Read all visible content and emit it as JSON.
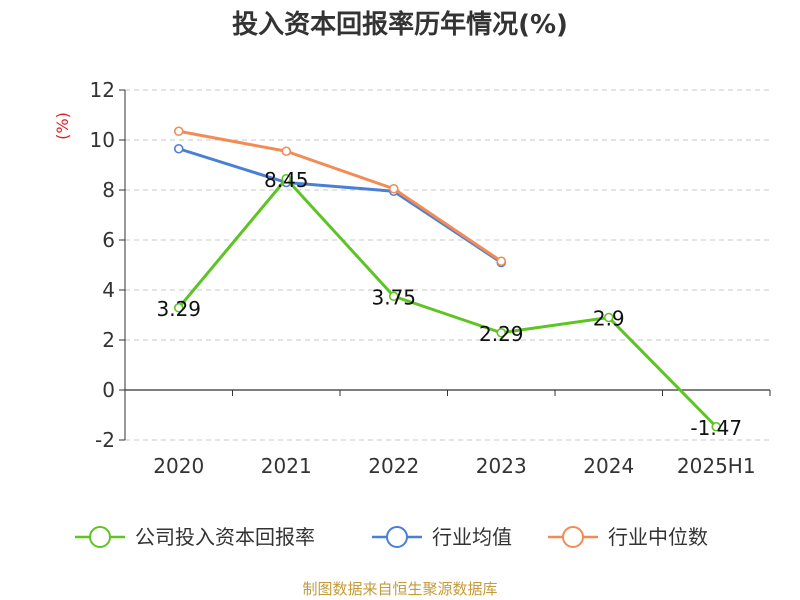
{
  "chart_data": {
    "type": "line",
    "title": "投入资本回报率历年情况(%)",
    "ylabel": "(%)",
    "xlabel": "",
    "categories": [
      "2020",
      "2021",
      "2022",
      "2023",
      "2024",
      "2025H1"
    ],
    "ylim": [
      -2,
      12
    ],
    "yticks": [
      -2,
      0,
      2,
      4,
      6,
      8,
      10,
      12
    ],
    "grid": true,
    "legend_position": "bottom",
    "series": [
      {
        "name": "公司投入资本回报率",
        "color": "#5ec423",
        "values": [
          3.29,
          8.45,
          3.75,
          2.29,
          2.9,
          -1.47
        ],
        "labels": [
          "3.29",
          "8.45",
          "3.75",
          "2.29",
          "2.9",
          "-1.47"
        ]
      },
      {
        "name": "行业均值",
        "color": "#4a7fd6",
        "values": [
          9.65,
          8.3,
          7.95,
          5.1,
          null,
          null
        ]
      },
      {
        "name": "行业中位数",
        "color": "#f28b55",
        "values": [
          10.35,
          9.55,
          8.05,
          5.15,
          null,
          null
        ]
      }
    ],
    "source": "制图数据来自恒生聚源数据库"
  }
}
